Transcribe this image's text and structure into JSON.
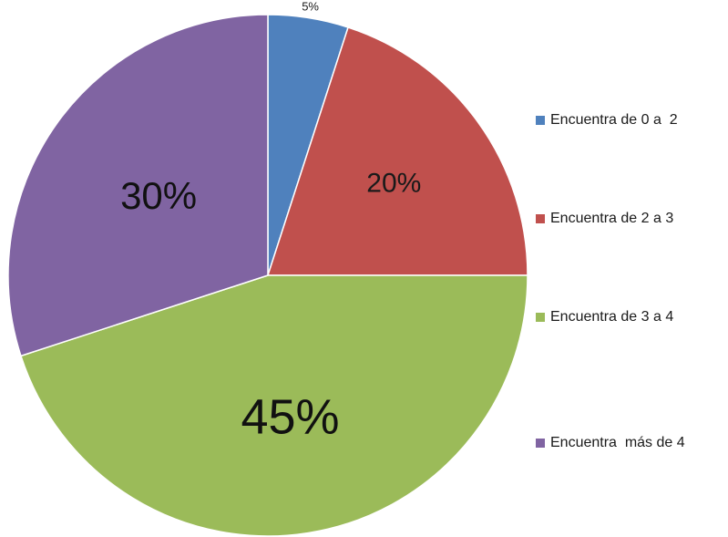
{
  "chart_data": {
    "type": "pie",
    "title": "",
    "slices": [
      {
        "label": "Encuentra de 0 a  2",
        "value": 5,
        "value_label": "5%",
        "color": "#4f81bd"
      },
      {
        "label": "Encuentra de 2 a 3",
        "value": 20,
        "value_label": "20%",
        "color": "#c0504d"
      },
      {
        "label": "Encuentra de 3 a 4",
        "value": 45,
        "value_label": "45%",
        "color": "#9bbb59"
      },
      {
        "label": "Encuentra  más de 4",
        "value": 30,
        "value_label": "30%",
        "color": "#8064a2"
      }
    ],
    "legend_position": "right"
  }
}
